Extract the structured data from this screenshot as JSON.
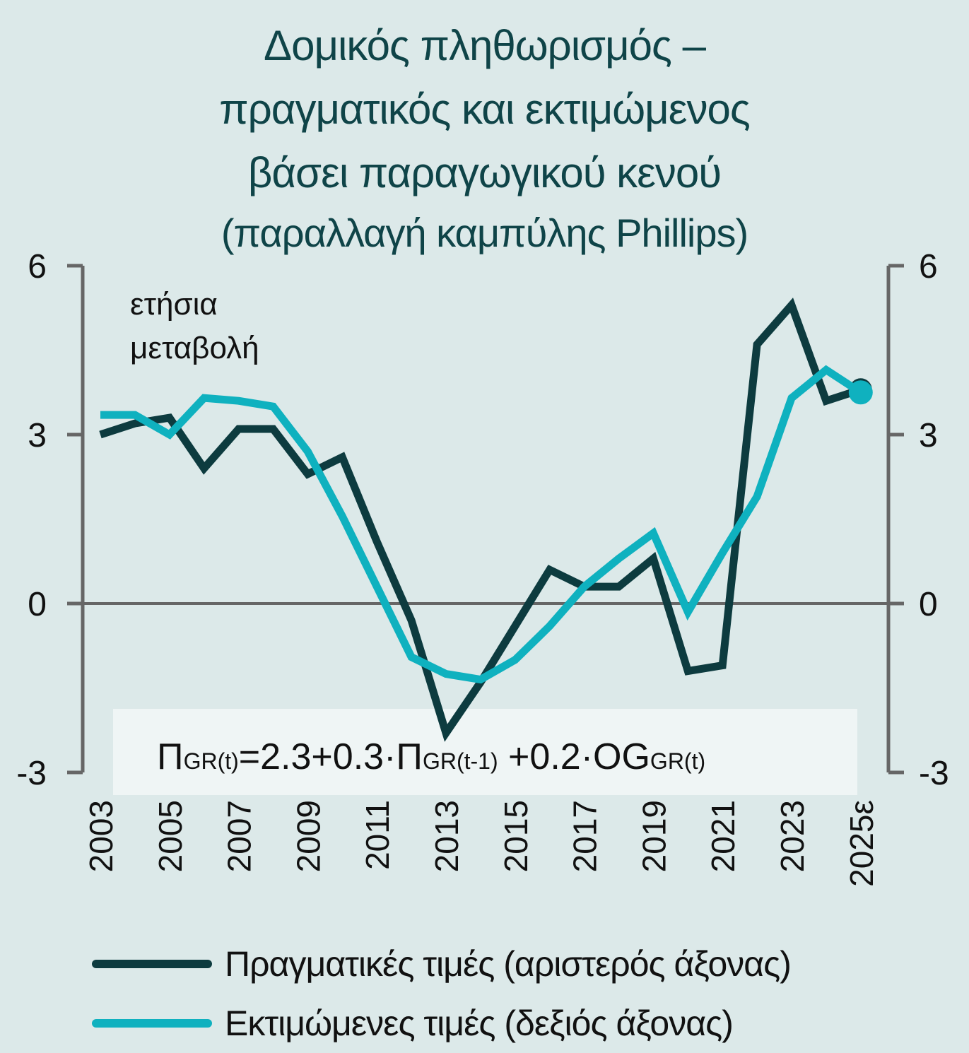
{
  "chart_data": {
    "type": "line",
    "title_lines": [
      "Δομικός πληθωρισμός –",
      "πραγματικός και εκτιμώμενος",
      "βάσει παραγωγικού κενού"
    ],
    "subtitle": "(παραλλαγή καμπύλης Phillips)",
    "ylabel_lines": [
      "ετήσια",
      "μεταβολή"
    ],
    "x": [
      "2003",
      "2004",
      "2005",
      "2006",
      "2007",
      "2008",
      "2009",
      "2010",
      "2011",
      "2012",
      "2013",
      "2014",
      "2015",
      "2016",
      "2017",
      "2018",
      "2019",
      "2020",
      "2021",
      "2022",
      "2023",
      "2024",
      "2025ε"
    ],
    "xtick_labels": [
      "2003",
      "2005",
      "2007",
      "2009",
      "2011",
      "2013",
      "2015",
      "2017",
      "2019",
      "2021",
      "2023",
      "2025ε"
    ],
    "y_left": {
      "ticks": [
        6,
        3,
        0,
        -3
      ],
      "ylim": [
        -3,
        6
      ]
    },
    "y_right": {
      "ticks": [
        6,
        3,
        0,
        -3
      ],
      "ylim": [
        -3,
        6
      ]
    },
    "series": [
      {
        "name": "Πραγματικές τιμές (αριστερός άξονας)",
        "axis": "left",
        "color": "#0d3b3f",
        "values": [
          3.0,
          3.2,
          3.3,
          2.4,
          3.1,
          3.1,
          2.3,
          2.6,
          1.1,
          -0.3,
          -2.3,
          -1.4,
          -0.4,
          0.6,
          0.3,
          0.3,
          0.8,
          -1.2,
          -1.1,
          4.6,
          5.3,
          3.6,
          3.8
        ]
      },
      {
        "name": "Εκτιμώμενες τιμές (δεξιός άξονας)",
        "axis": "right",
        "color": "#0fb1bf",
        "values": [
          3.35,
          3.35,
          3.0,
          3.65,
          3.6,
          3.5,
          2.7,
          1.55,
          0.3,
          -0.95,
          -1.25,
          -1.35,
          -1.0,
          -0.4,
          0.3,
          0.8,
          1.25,
          -0.15,
          0.9,
          1.9,
          3.65,
          4.15,
          3.75
        ]
      }
    ],
    "grid": false,
    "legend_position": "bottom",
    "annotation": {
      "parts": [
        {
          "text": "Π",
          "sub": false
        },
        {
          "text": "GR(t)",
          "sub": true
        },
        {
          "text": "=2.3+0.3·Π",
          "sub": false
        },
        {
          "text": "GR(t-1)",
          "sub": true
        },
        {
          "text": " +0.2·OG",
          "sub": false
        },
        {
          "text": "GR(t)",
          "sub": true
        }
      ]
    }
  }
}
